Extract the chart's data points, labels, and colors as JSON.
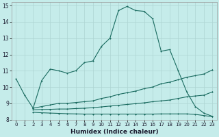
{
  "xlabel": "Humidex (Indice chaleur)",
  "bg_color": "#c5ecea",
  "grid_color": "#aed4d2",
  "line_color": "#1a6b60",
  "xlim": [
    -0.5,
    23.5
  ],
  "ylim": [
    8,
    15.2
  ],
  "xticks": [
    0,
    1,
    2,
    3,
    4,
    5,
    6,
    7,
    8,
    9,
    10,
    11,
    12,
    13,
    14,
    15,
    16,
    17,
    18,
    19,
    20,
    21,
    22,
    23
  ],
  "yticks": [
    8,
    9,
    10,
    11,
    12,
    13,
    14,
    15
  ],
  "s1_x": [
    0,
    1,
    2,
    3,
    4,
    5,
    6,
    7,
    8,
    9,
    10,
    11,
    12,
    13,
    14,
    15,
    16,
    17,
    18,
    19,
    20,
    21,
    22,
    23
  ],
  "s1_y": [
    10.5,
    9.5,
    8.7,
    10.4,
    11.1,
    11.0,
    10.85,
    11.0,
    11.5,
    11.6,
    12.5,
    13.0,
    14.7,
    14.95,
    14.7,
    14.65,
    14.2,
    12.2,
    12.3,
    11.0,
    9.7,
    8.8,
    8.4,
    8.2
  ],
  "s2_x": [
    2,
    3,
    4,
    5,
    6,
    7,
    8,
    9,
    10,
    11,
    12,
    13,
    14,
    15,
    16,
    17,
    18,
    19,
    20,
    21,
    22,
    23
  ],
  "s2_y": [
    8.7,
    8.8,
    8.9,
    9.0,
    9.0,
    9.05,
    9.1,
    9.15,
    9.3,
    9.4,
    9.55,
    9.65,
    9.75,
    9.9,
    10.0,
    10.2,
    10.3,
    10.45,
    10.6,
    10.7,
    10.8,
    11.05
  ],
  "s3_x": [
    2,
    3,
    4,
    5,
    6,
    7,
    8,
    9,
    10,
    11,
    12,
    13,
    14,
    15,
    16,
    17,
    18,
    19,
    20,
    21,
    22,
    23
  ],
  "s3_y": [
    8.6,
    8.62,
    8.63,
    8.65,
    8.65,
    8.68,
    8.7,
    8.73,
    8.78,
    8.83,
    8.88,
    8.93,
    8.98,
    9.03,
    9.1,
    9.15,
    9.2,
    9.3,
    9.4,
    9.45,
    9.5,
    9.7
  ],
  "s4_x": [
    2,
    3,
    4,
    5,
    6,
    7,
    8,
    9,
    10,
    11,
    12,
    13,
    14,
    15,
    16,
    17,
    18,
    19,
    20,
    21,
    22,
    23
  ],
  "s4_y": [
    8.45,
    8.42,
    8.4,
    8.38,
    8.36,
    8.35,
    8.34,
    8.34,
    8.34,
    8.34,
    8.34,
    8.34,
    8.34,
    8.34,
    8.34,
    8.35,
    8.35,
    8.35,
    8.35,
    8.32,
    8.25,
    8.18
  ]
}
